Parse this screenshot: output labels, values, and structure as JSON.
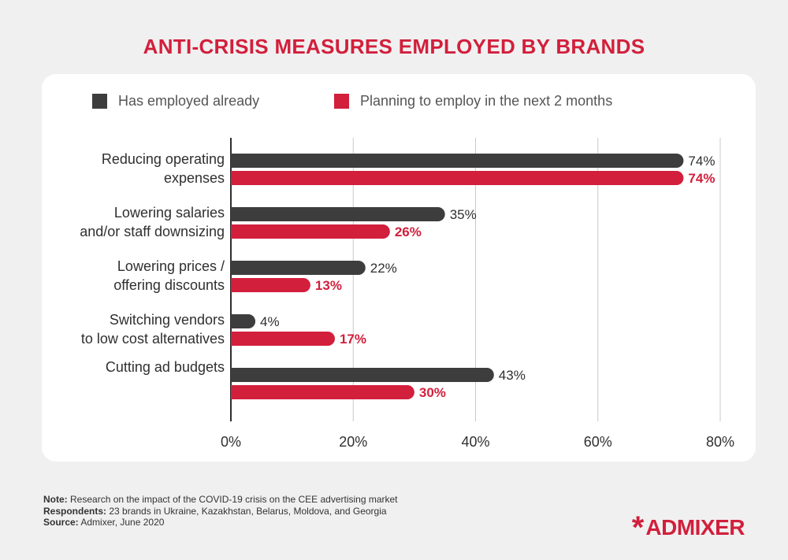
{
  "chart_data": {
    "type": "bar",
    "orientation": "horizontal",
    "title": "ANTI-CRISIS MEASURES EMPLOYED BY BRANDS",
    "categories": [
      [
        "Reducing operating",
        "expenses"
      ],
      [
        "Lowering salaries",
        "and/or staff downsizing"
      ],
      [
        "Lowering prices /",
        "offering discounts"
      ],
      [
        "Switching vendors",
        "to low cost alternatives"
      ],
      [
        "Cutting ad budgets"
      ]
    ],
    "series": [
      {
        "name": "Has employed already",
        "color": "#3d3d3d",
        "values": [
          74,
          35,
          22,
          4,
          43
        ]
      },
      {
        "name": "Planning to employ in the next 2 months",
        "color": "#d21f3c",
        "values": [
          74,
          26,
          13,
          17,
          30
        ]
      }
    ],
    "value_suffix": "%",
    "xlim": [
      0,
      80
    ],
    "xticks": [
      "0%",
      "20%",
      "40%",
      "60%",
      "80%"
    ],
    "grid": true,
    "legend_position": "top"
  },
  "notes": {
    "note_label": "Note:",
    "note_text": " Research on the impact of the COVID-19 crisis on the CEE advertising market",
    "respondents_label": "Respondents:",
    "respondents_text": " 23 brands in Ukraine, Kazakhstan, Belarus, Moldova, and Georgia",
    "source_label": "Source:",
    "source_text": " Admixer, June 2020"
  },
  "brand": {
    "logo_mark": "*",
    "logo_prefix": "AD",
    "logo_suffix": "MIXER"
  }
}
